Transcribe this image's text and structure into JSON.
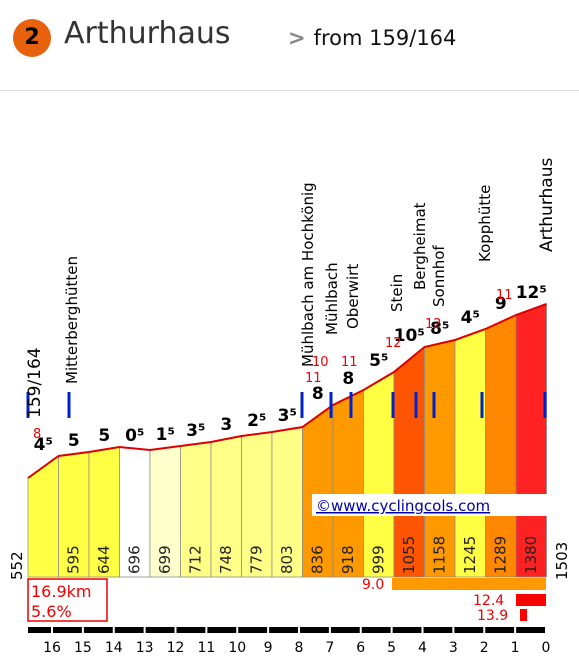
{
  "header": {
    "climb_number": "2",
    "climb_name": "Arthurhaus",
    "chevron": ">",
    "from_text": "from 159/164"
  },
  "chart_data": {
    "type": "area",
    "start_label": "159/164",
    "end_label": "Arthurhaus",
    "distance_ticks": [
      "16",
      "15",
      "14",
      "13",
      "12",
      "11",
      "10",
      "9",
      "8",
      "7",
      "6",
      "5",
      "4",
      "3",
      "2",
      "1",
      "0"
    ],
    "segments": [
      {
        "grade": "4⁵",
        "alt": "",
        "color": "#ffff44"
      },
      {
        "grade": "5",
        "alt": "595",
        "color": "#ffff44"
      },
      {
        "grade": "5",
        "alt": "644",
        "color": "#ffff44"
      },
      {
        "grade": "0⁵",
        "alt": "696",
        "color": "#ffffff"
      },
      {
        "grade": "1⁵",
        "alt": "699",
        "color": "#ffffcc"
      },
      {
        "grade": "3⁵",
        "alt": "712",
        "color": "#ffff88"
      },
      {
        "grade": "3",
        "alt": "748",
        "color": "#ffff88"
      },
      {
        "grade": "2⁵",
        "alt": "779",
        "color": "#ffff88"
      },
      {
        "grade": "3⁵",
        "alt": "803",
        "color": "#ffff88"
      },
      {
        "grade": "8",
        "alt": "836",
        "color": "#ff9900"
      },
      {
        "grade": "8",
        "alt": "918",
        "color": "#ff9900"
      },
      {
        "grade": "5⁵",
        "alt": "999",
        "color": "#ffff44"
      },
      {
        "grade": "10⁵",
        "alt": "1055",
        "color": "#ff5500"
      },
      {
        "grade": "8⁵",
        "alt": "1158",
        "color": "#ff9900"
      },
      {
        "grade": "4⁵",
        "alt": "1245",
        "color": "#ffff44"
      },
      {
        "grade": "9",
        "alt": "1289",
        "color": "#ff8800"
      },
      {
        "grade": "12⁵",
        "alt": "1380",
        "color": "#ff2222"
      }
    ],
    "start_alt": "552",
    "end_alt": "1503",
    "max_grade_labels": [
      "8",
      "11",
      "10",
      "11",
      "12",
      "12",
      "11"
    ],
    "places": [
      "Mitterberghütten",
      "Mühlbach am Hochkönig",
      "Mühlbach",
      "Oberwirt",
      "Stein",
      "Bergheimat",
      "Sonnhof",
      "Kopphütte",
      "Arthurhaus"
    ],
    "summary": {
      "distance": "16.9km",
      "avg_grade": "5.6%"
    },
    "bars": [
      {
        "label": "9.0",
        "color": "#ff9900"
      },
      {
        "label": "12.4",
        "color": "#ff0000"
      },
      {
        "label": "13.9",
        "color": "#ff0000"
      }
    ],
    "watermark": "©www.cyclingcols.com"
  }
}
